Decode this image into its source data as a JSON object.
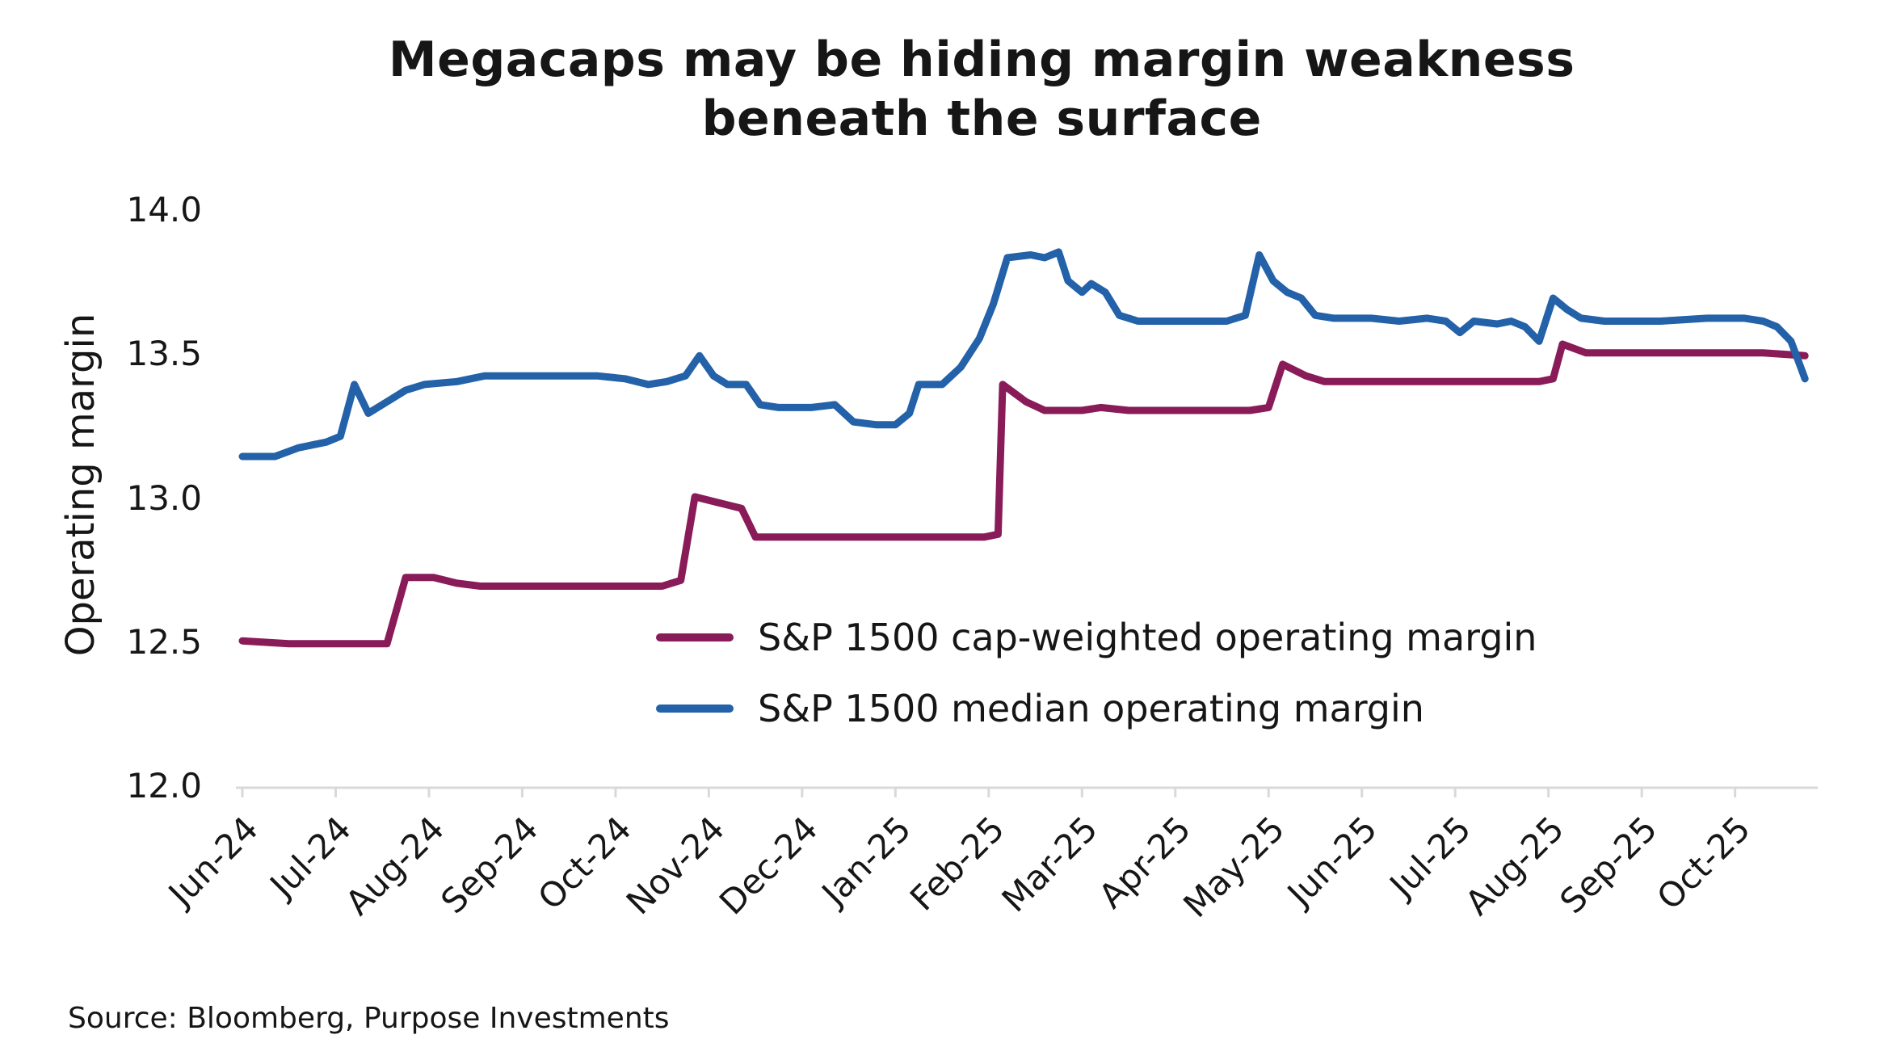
{
  "page": {
    "title": "Megacaps may be hiding margin weakness beneath the surface",
    "source": "Source: Bloomberg, Purpose Investments"
  },
  "chart_data": {
    "type": "line",
    "title": "Megacaps may be hiding margin weakness beneath the surface",
    "xlabel": "",
    "ylabel": "Operating margin",
    "ylim": [
      12.0,
      14.0
    ],
    "yticks": [
      12.0,
      12.5,
      13.0,
      13.5,
      14.0
    ],
    "x_tick_labels": [
      "Jun-24",
      "Jul-24",
      "Aug-24",
      "Sep-24",
      "Oct-24",
      "Nov-24",
      "Dec-24",
      "Jan-25",
      "Feb-25",
      "Mar-25",
      "Apr-25",
      "May-25",
      "Jun-25",
      "Jul-25",
      "Aug-25",
      "Sep-25",
      "Oct-25"
    ],
    "x_domain": [
      0,
      16.8
    ],
    "grid": "bottom-axis-only",
    "legend_position": "inside-lower-center",
    "axis_line_color": "#d9d9d9",
    "series": [
      {
        "name": "S&P 1500 cap-weighted operating margin",
        "color": "#891C58",
        "points": [
          [
            0.0,
            12.51
          ],
          [
            0.5,
            12.5
          ],
          [
            1.55,
            12.5
          ],
          [
            1.75,
            12.73
          ],
          [
            2.05,
            12.73
          ],
          [
            2.3,
            12.71
          ],
          [
            2.55,
            12.7
          ],
          [
            4.5,
            12.7
          ],
          [
            4.7,
            12.72
          ],
          [
            4.85,
            13.01
          ],
          [
            5.1,
            12.99
          ],
          [
            5.35,
            12.97
          ],
          [
            5.5,
            12.87
          ],
          [
            7.95,
            12.87
          ],
          [
            8.1,
            12.88
          ],
          [
            8.15,
            13.4
          ],
          [
            8.4,
            13.34
          ],
          [
            8.6,
            13.31
          ],
          [
            9.0,
            13.31
          ],
          [
            9.2,
            13.32
          ],
          [
            9.5,
            13.31
          ],
          [
            10.8,
            13.31
          ],
          [
            11.0,
            13.32
          ],
          [
            11.15,
            13.47
          ],
          [
            11.4,
            13.43
          ],
          [
            11.6,
            13.41
          ],
          [
            13.9,
            13.41
          ],
          [
            14.05,
            13.42
          ],
          [
            14.15,
            13.54
          ],
          [
            14.4,
            13.51
          ],
          [
            16.3,
            13.51
          ],
          [
            16.75,
            13.5
          ]
        ]
      },
      {
        "name": "S&P 1500 median operating margin",
        "color": "#2361A8",
        "points": [
          [
            0.0,
            13.15
          ],
          [
            0.35,
            13.15
          ],
          [
            0.6,
            13.18
          ],
          [
            0.9,
            13.2
          ],
          [
            1.05,
            13.22
          ],
          [
            1.2,
            13.4
          ],
          [
            1.35,
            13.3
          ],
          [
            1.55,
            13.34
          ],
          [
            1.75,
            13.38
          ],
          [
            1.95,
            13.4
          ],
          [
            2.3,
            13.41
          ],
          [
            2.6,
            13.43
          ],
          [
            3.2,
            13.43
          ],
          [
            3.8,
            13.43
          ],
          [
            4.1,
            13.42
          ],
          [
            4.35,
            13.4
          ],
          [
            4.55,
            13.41
          ],
          [
            4.75,
            13.43
          ],
          [
            4.9,
            13.5
          ],
          [
            5.05,
            13.43
          ],
          [
            5.2,
            13.4
          ],
          [
            5.4,
            13.4
          ],
          [
            5.55,
            13.33
          ],
          [
            5.75,
            13.32
          ],
          [
            6.1,
            13.32
          ],
          [
            6.35,
            13.33
          ],
          [
            6.55,
            13.27
          ],
          [
            6.8,
            13.26
          ],
          [
            7.0,
            13.26
          ],
          [
            7.15,
            13.3
          ],
          [
            7.25,
            13.4
          ],
          [
            7.5,
            13.4
          ],
          [
            7.7,
            13.46
          ],
          [
            7.9,
            13.56
          ],
          [
            8.05,
            13.68
          ],
          [
            8.2,
            13.84
          ],
          [
            8.45,
            13.85
          ],
          [
            8.6,
            13.84
          ],
          [
            8.75,
            13.86
          ],
          [
            8.85,
            13.76
          ],
          [
            9.0,
            13.72
          ],
          [
            9.1,
            13.75
          ],
          [
            9.25,
            13.72
          ],
          [
            9.4,
            13.64
          ],
          [
            9.6,
            13.62
          ],
          [
            10.2,
            13.62
          ],
          [
            10.55,
            13.62
          ],
          [
            10.75,
            13.64
          ],
          [
            10.9,
            13.85
          ],
          [
            11.05,
            13.76
          ],
          [
            11.2,
            13.72
          ],
          [
            11.35,
            13.7
          ],
          [
            11.5,
            13.64
          ],
          [
            11.7,
            13.63
          ],
          [
            12.1,
            13.63
          ],
          [
            12.4,
            13.62
          ],
          [
            12.7,
            13.63
          ],
          [
            12.9,
            13.62
          ],
          [
            13.05,
            13.58
          ],
          [
            13.2,
            13.62
          ],
          [
            13.45,
            13.61
          ],
          [
            13.6,
            13.62
          ],
          [
            13.75,
            13.6
          ],
          [
            13.9,
            13.55
          ],
          [
            14.05,
            13.7
          ],
          [
            14.2,
            13.66
          ],
          [
            14.35,
            13.63
          ],
          [
            14.6,
            13.62
          ],
          [
            15.2,
            13.62
          ],
          [
            15.7,
            13.63
          ],
          [
            16.1,
            13.63
          ],
          [
            16.3,
            13.62
          ],
          [
            16.45,
            13.6
          ],
          [
            16.6,
            13.55
          ],
          [
            16.75,
            13.42
          ]
        ]
      }
    ],
    "source": "Source: Bloomberg, Purpose Investments"
  }
}
